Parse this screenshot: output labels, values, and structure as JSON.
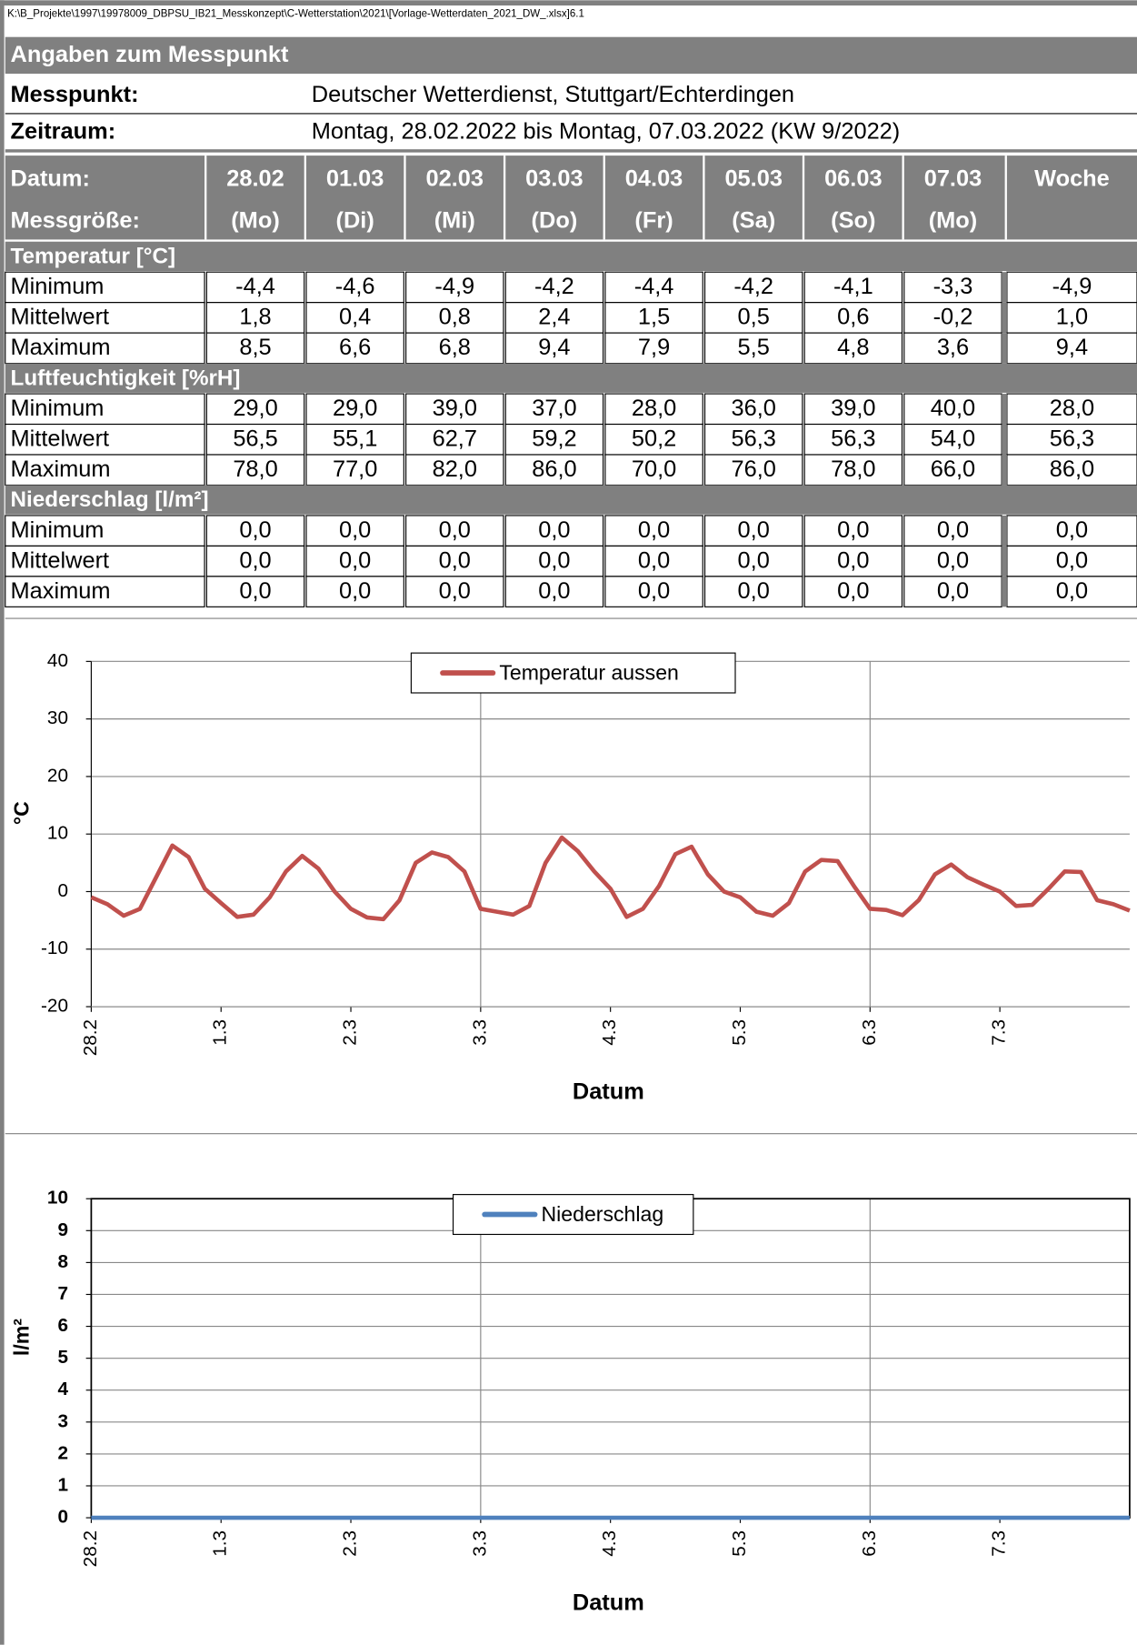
{
  "file_path": "K:\\B_Projekte\\1997\\19978009_DBPSU_IB21_Messkonzept\\C-Wetterstation\\2021\\[Vorlage-Wetterdaten_2021_DW_.xlsx]6.1",
  "section_title": "Angaben zum Messpunkt",
  "info": [
    {
      "label": "Messpunkt:",
      "value": "Deutscher Wetterdienst, Stuttgart/Echterdingen"
    },
    {
      "label": "Zeitraum:",
      "value": "Montag, 28.02.2022 bis Montag, 07.03.2022 (KW 9/2022)"
    }
  ],
  "table": {
    "header_top": [
      "Datum:",
      "28.02",
      "01.03",
      "02.03",
      "03.03",
      "04.03",
      "05.03",
      "06.03",
      "07.03",
      "Woche"
    ],
    "header_bottom": [
      "Messgröße:",
      "(Mo)",
      "(Di)",
      "(Mi)",
      "(Do)",
      "(Fr)",
      "(Sa)",
      "(So)",
      "(Mo)"
    ],
    "groups": [
      {
        "title": "Temperatur [°C]",
        "rows": [
          [
            "Minimum",
            "-4,4",
            "-4,6",
            "-4,9",
            "-4,2",
            "-4,4",
            "-4,2",
            "-4,1",
            "-3,3",
            "-4,9"
          ],
          [
            "Mittelwert",
            "1,8",
            "0,4",
            "0,8",
            "2,4",
            "1,5",
            "0,5",
            "0,6",
            "-0,2",
            "1,0"
          ],
          [
            "Maximum",
            "8,5",
            "6,6",
            "6,8",
            "9,4",
            "7,9",
            "5,5",
            "4,8",
            "3,6",
            "9,4"
          ]
        ]
      },
      {
        "title": "Luftfeuchtigkeit [%rH]",
        "rows": [
          [
            "Minimum",
            "29,0",
            "29,0",
            "39,0",
            "37,0",
            "28,0",
            "36,0",
            "39,0",
            "40,0",
            "28,0"
          ],
          [
            "Mittelwert",
            "56,5",
            "55,1",
            "62,7",
            "59,2",
            "50,2",
            "56,3",
            "56,3",
            "54,0",
            "56,3"
          ],
          [
            "Maximum",
            "78,0",
            "77,0",
            "82,0",
            "86,0",
            "70,0",
            "76,0",
            "78,0",
            "66,0",
            "86,0"
          ]
        ]
      },
      {
        "title": "Niederschlag [l/m²]",
        "rows": [
          [
            "Minimum",
            "0,0",
            "0,0",
            "0,0",
            "0,0",
            "0,0",
            "0,0",
            "0,0",
            "0,0",
            "0,0"
          ],
          [
            "Mittelwert",
            "0,0",
            "0,0",
            "0,0",
            "0,0",
            "0,0",
            "0,0",
            "0,0",
            "0,0",
            "0,0"
          ],
          [
            "Maximum",
            "0,0",
            "0,0",
            "0,0",
            "0,0",
            "0,0",
            "0,0",
            "0,0",
            "0,0",
            "0,0"
          ]
        ]
      }
    ]
  },
  "chart_data": [
    {
      "type": "line",
      "x_label": "Datum",
      "y_label": "°C",
      "legend": "top",
      "xlim": [
        0,
        8
      ],
      "xticks": [
        {
          "value": 0,
          "label": "28.2"
        },
        {
          "value": 1,
          "label": "1.3"
        },
        {
          "value": 2,
          "label": "2.3"
        },
        {
          "value": 3,
          "label": "3.3"
        },
        {
          "value": 4,
          "label": "4.3"
        },
        {
          "value": 5,
          "label": "5.3"
        },
        {
          "value": 6,
          "label": "6.3"
        },
        {
          "value": 7,
          "label": "7.3"
        }
      ],
      "ylim": [
        -20,
        40
      ],
      "yticks": [
        -20,
        -10,
        0,
        10,
        20,
        30,
        40
      ],
      "grid": true,
      "x": [
        0,
        0.125,
        0.25,
        0.375,
        0.5,
        0.625,
        0.75,
        0.875,
        1,
        1.125,
        1.25,
        1.375,
        1.5,
        1.625,
        1.75,
        1.875,
        2,
        2.125,
        2.25,
        2.375,
        2.5,
        2.625,
        2.75,
        2.875,
        3,
        3.125,
        3.25,
        3.375,
        3.5,
        3.625,
        3.75,
        3.875,
        4,
        4.125,
        4.25,
        4.375,
        4.5,
        4.625,
        4.75,
        4.875,
        5,
        5.125,
        5.25,
        5.375,
        5.5,
        5.625,
        5.75,
        5.875,
        6,
        6.125,
        6.25,
        6.375,
        6.5,
        6.625,
        6.75,
        6.875,
        7,
        7.125,
        7.25,
        7.375,
        7.5,
        7.625,
        7.75,
        7.875,
        8
      ],
      "series": [
        {
          "name": "Temperatur aussen",
          "color": "#c0504d",
          "values": [
            -1,
            -2.2,
            -4.2,
            -3,
            2.5,
            8,
            6,
            0.5,
            -2,
            -4.4,
            -4,
            -1,
            3.5,
            6.2,
            4,
            0,
            -3,
            -4.5,
            -4.8,
            -1.5,
            5,
            6.8,
            6,
            3.5,
            -3,
            -3.5,
            -4,
            -2.5,
            5,
            9.4,
            7,
            3.5,
            0.5,
            -4.4,
            -3,
            1,
            6.5,
            7.8,
            3,
            0,
            -1,
            -3.5,
            -4.2,
            -2,
            3.5,
            5.5,
            5.3,
            1,
            -3,
            -3.2,
            -4.1,
            -1.5,
            3,
            4.7,
            2.5,
            1.2,
            0,
            -2.5,
            -2.3,
            0.5,
            3.5,
            3.4,
            -1.5,
            -2.2,
            -3.3
          ]
        }
      ]
    },
    {
      "type": "line",
      "x_label": "Datum",
      "y_label": "l/m²",
      "legend": "top",
      "xlim": [
        0,
        8
      ],
      "xticks": [
        {
          "value": 0,
          "label": "28.2"
        },
        {
          "value": 1,
          "label": "1.3"
        },
        {
          "value": 2,
          "label": "2.3"
        },
        {
          "value": 3,
          "label": "3.3"
        },
        {
          "value": 4,
          "label": "4.3"
        },
        {
          "value": 5,
          "label": "5.3"
        },
        {
          "value": 6,
          "label": "6.3"
        },
        {
          "value": 7,
          "label": "7.3"
        }
      ],
      "ylim": [
        0,
        10
      ],
      "yticks": [
        0,
        1,
        2,
        3,
        4,
        5,
        6,
        7,
        8,
        9,
        10
      ],
      "grid": true,
      "x": [
        0,
        1,
        2,
        3,
        4,
        5,
        6,
        7,
        8
      ],
      "series": [
        {
          "name": "Niederschlag",
          "color": "#4f81bd",
          "values": [
            0,
            0,
            0,
            0,
            0,
            0,
            0,
            0,
            0
          ]
        }
      ]
    }
  ]
}
